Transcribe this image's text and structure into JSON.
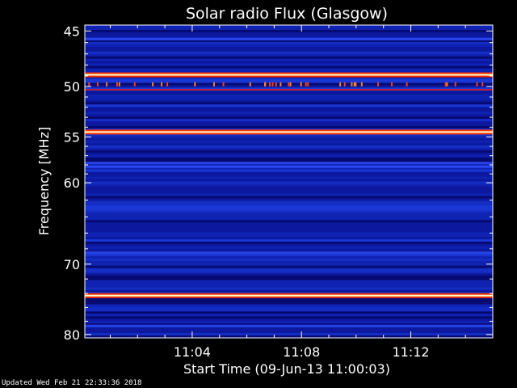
{
  "chart_data": {
    "type": "heatmap",
    "title": "Solar radio Flux (Glasgow)",
    "xlabel": "Start Time (09-Jun-13 11:00:03)",
    "ylabel": "Frequency [MHz]",
    "x_ticks": [
      "11:04",
      "11:08",
      "11:12"
    ],
    "x_tick_minutes": [
      4,
      8,
      12
    ],
    "x_range_minutes": [
      0.07,
      15.0
    ],
    "y_ticks": [
      45,
      50,
      55,
      60,
      70,
      80
    ],
    "y_range": [
      44.5,
      80.5
    ],
    "y_scale": "log",
    "colormap": [
      "#00003c",
      "#1428c8",
      "#ff3c00",
      "#ffffe6"
    ],
    "bright_bands_mhz": [
      {
        "freq": 48.9,
        "intensity": "very high"
      },
      {
        "freq": 50.3,
        "intensity": "moderate"
      },
      {
        "freq": 54.5,
        "intensity": "very high"
      },
      {
        "freq": 74.3,
        "intensity": "very high"
      }
    ],
    "weak_bands_mhz": [
      45.7,
      57.8,
      58.2,
      68.5,
      78.7
    ]
  },
  "footer": {
    "updated": "Updated Wed Feb 21 22:33:36 2018"
  }
}
